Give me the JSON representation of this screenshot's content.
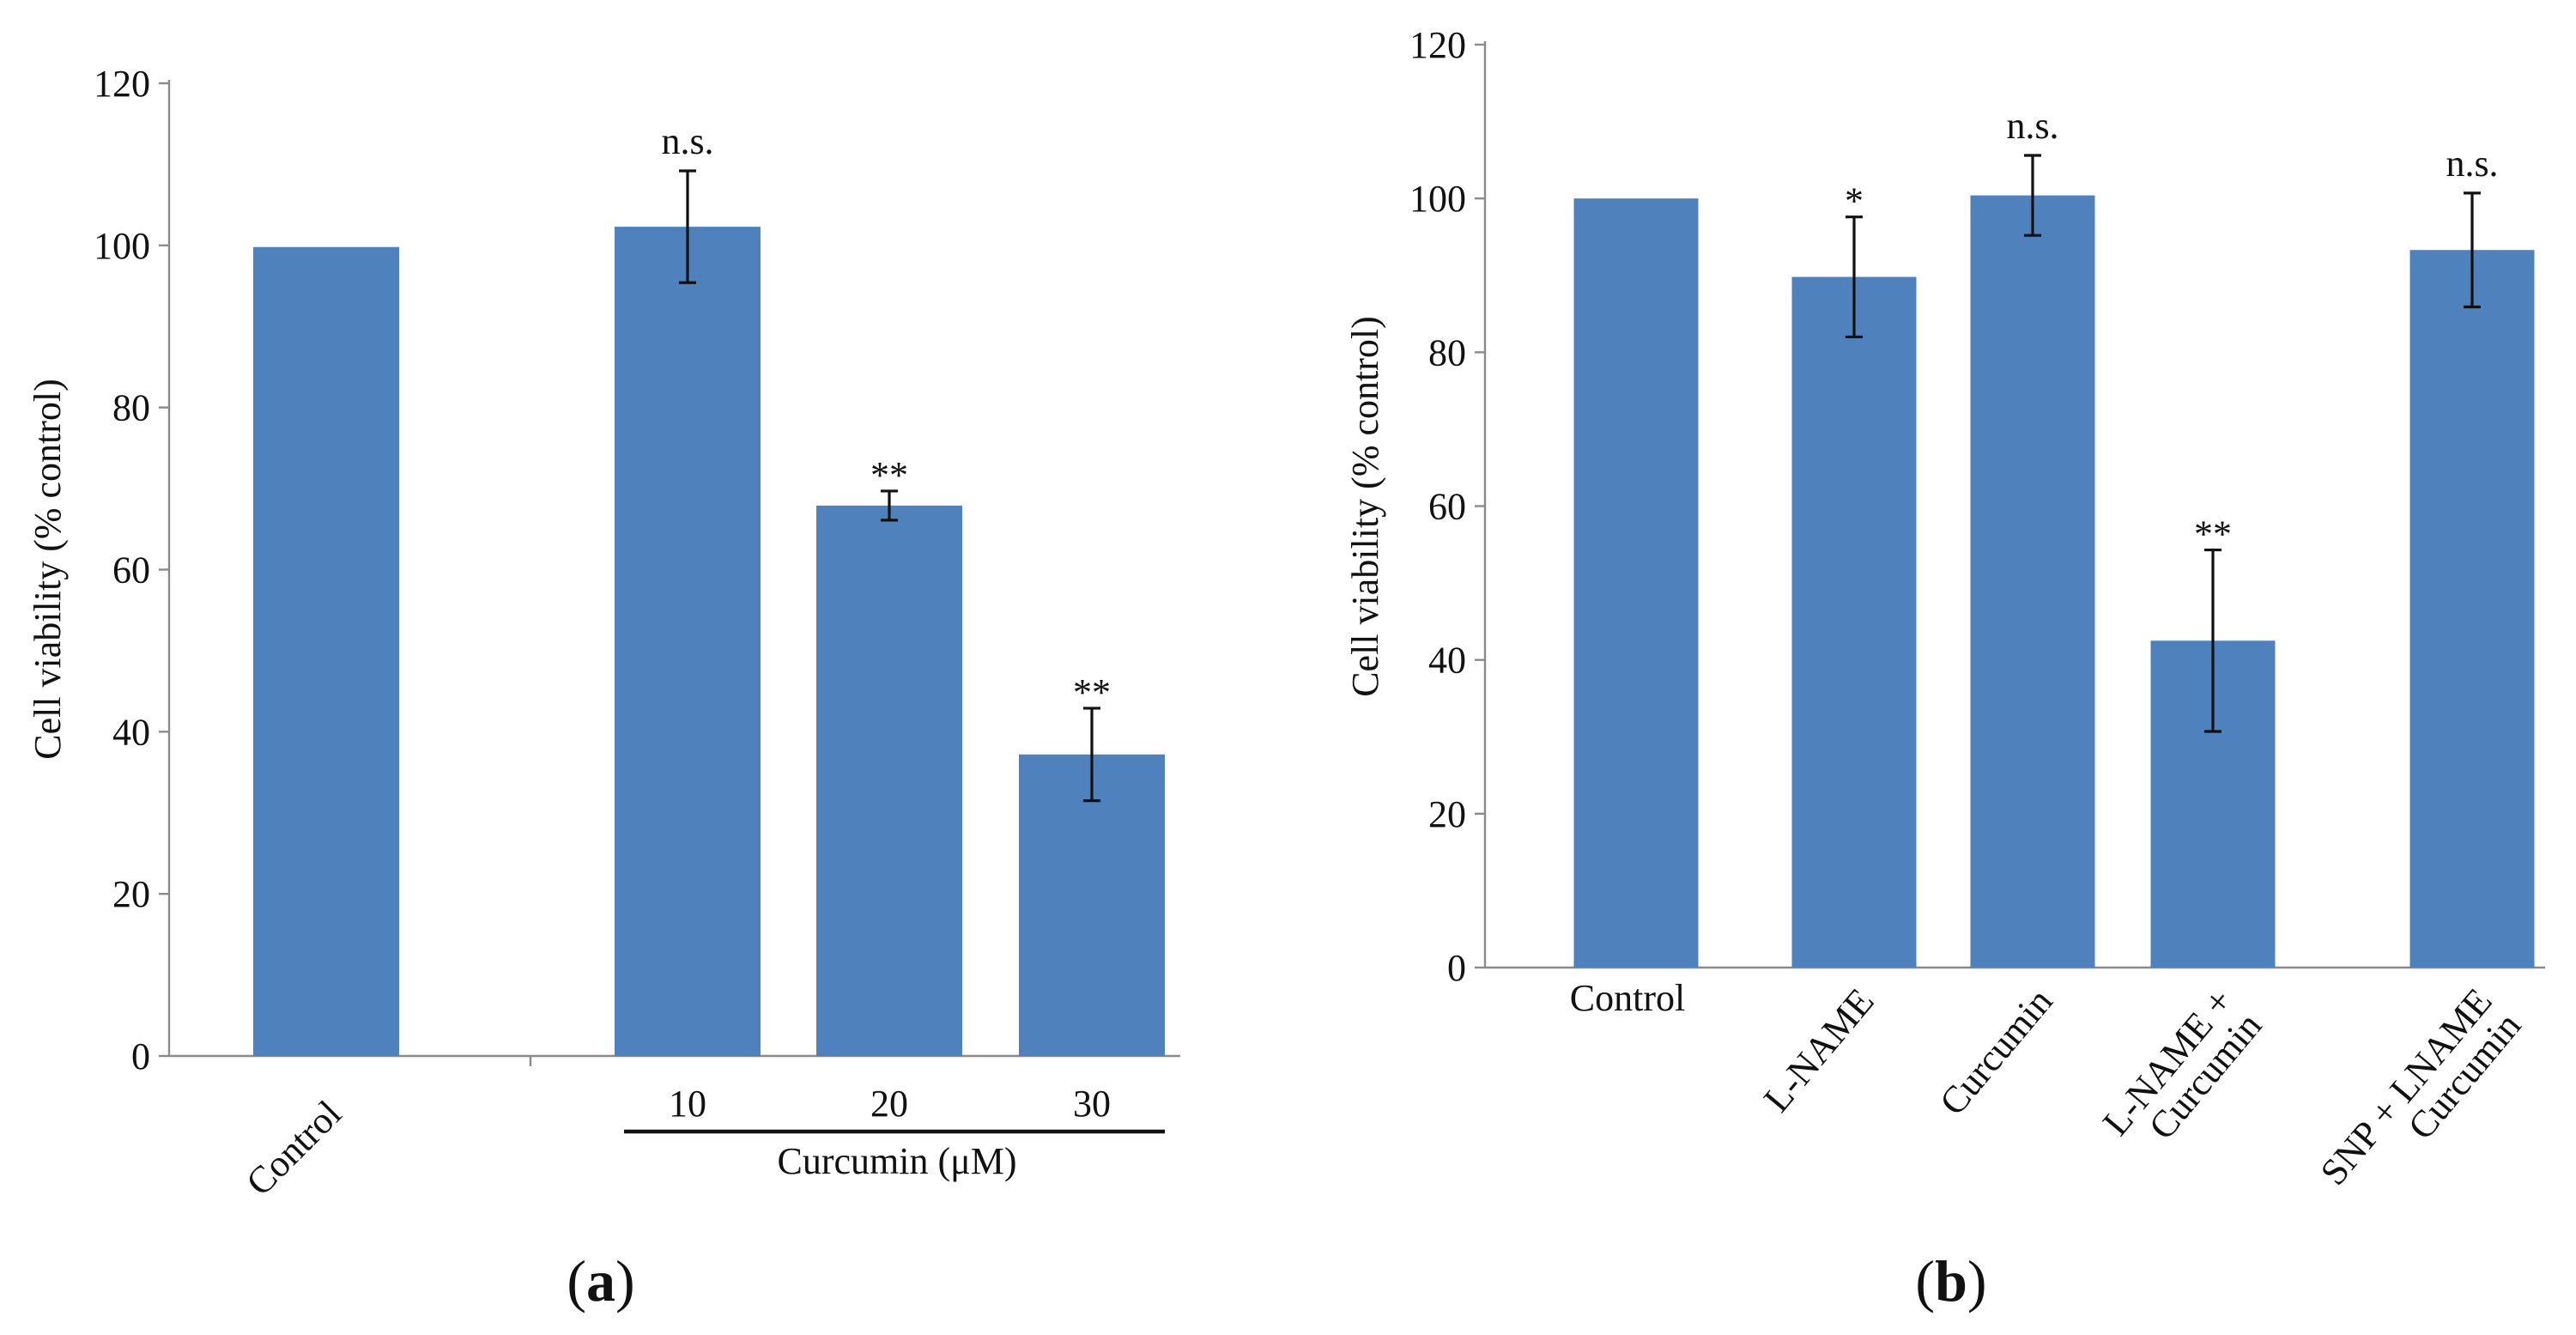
{
  "colors": {
    "bar": "#4f81bd",
    "axis": "#8a8a8a",
    "text": "#111111"
  },
  "chart_data": [
    {
      "panel": "a",
      "type": "bar",
      "ylabel": "Cell viability (% control)",
      "ylim": [
        0,
        120
      ],
      "yticks": [
        "0",
        "20",
        "40",
        "60",
        "80",
        "100",
        "120"
      ],
      "categories": [
        "Control",
        "10",
        "20",
        "30"
      ],
      "values": [
        99.8,
        102.3,
        67.9,
        37.2
      ],
      "errors": [
        0,
        6.9,
        1.8,
        5.7
      ],
      "significance": [
        "",
        "n.s.",
        "**",
        "**"
      ],
      "group_label": "Curcumin (μM)",
      "panel_label": {
        "open": "(",
        "letter": "a",
        "close": ")"
      }
    },
    {
      "panel": "b",
      "type": "bar",
      "ylabel": "Cell viability (% control)",
      "ylim": [
        0,
        120
      ],
      "yticks": [
        "0",
        "20",
        "40",
        "60",
        "80",
        "100",
        "120"
      ],
      "categories": [
        [
          "Control"
        ],
        [
          "L-NAME"
        ],
        [
          "Curcumin"
        ],
        [
          "L-NAME +",
          "Curcumin"
        ],
        [
          "SNP + LNAME",
          "Curcumin"
        ]
      ],
      "values": [
        100.0,
        89.8,
        100.4,
        42.5,
        93.3
      ],
      "errors": [
        0,
        7.8,
        5.2,
        11.8,
        7.4
      ],
      "significance": [
        "",
        "*",
        "n.s.",
        "**",
        "n.s."
      ],
      "panel_label": {
        "open": "(",
        "letter": "b",
        "close": ")"
      }
    }
  ]
}
